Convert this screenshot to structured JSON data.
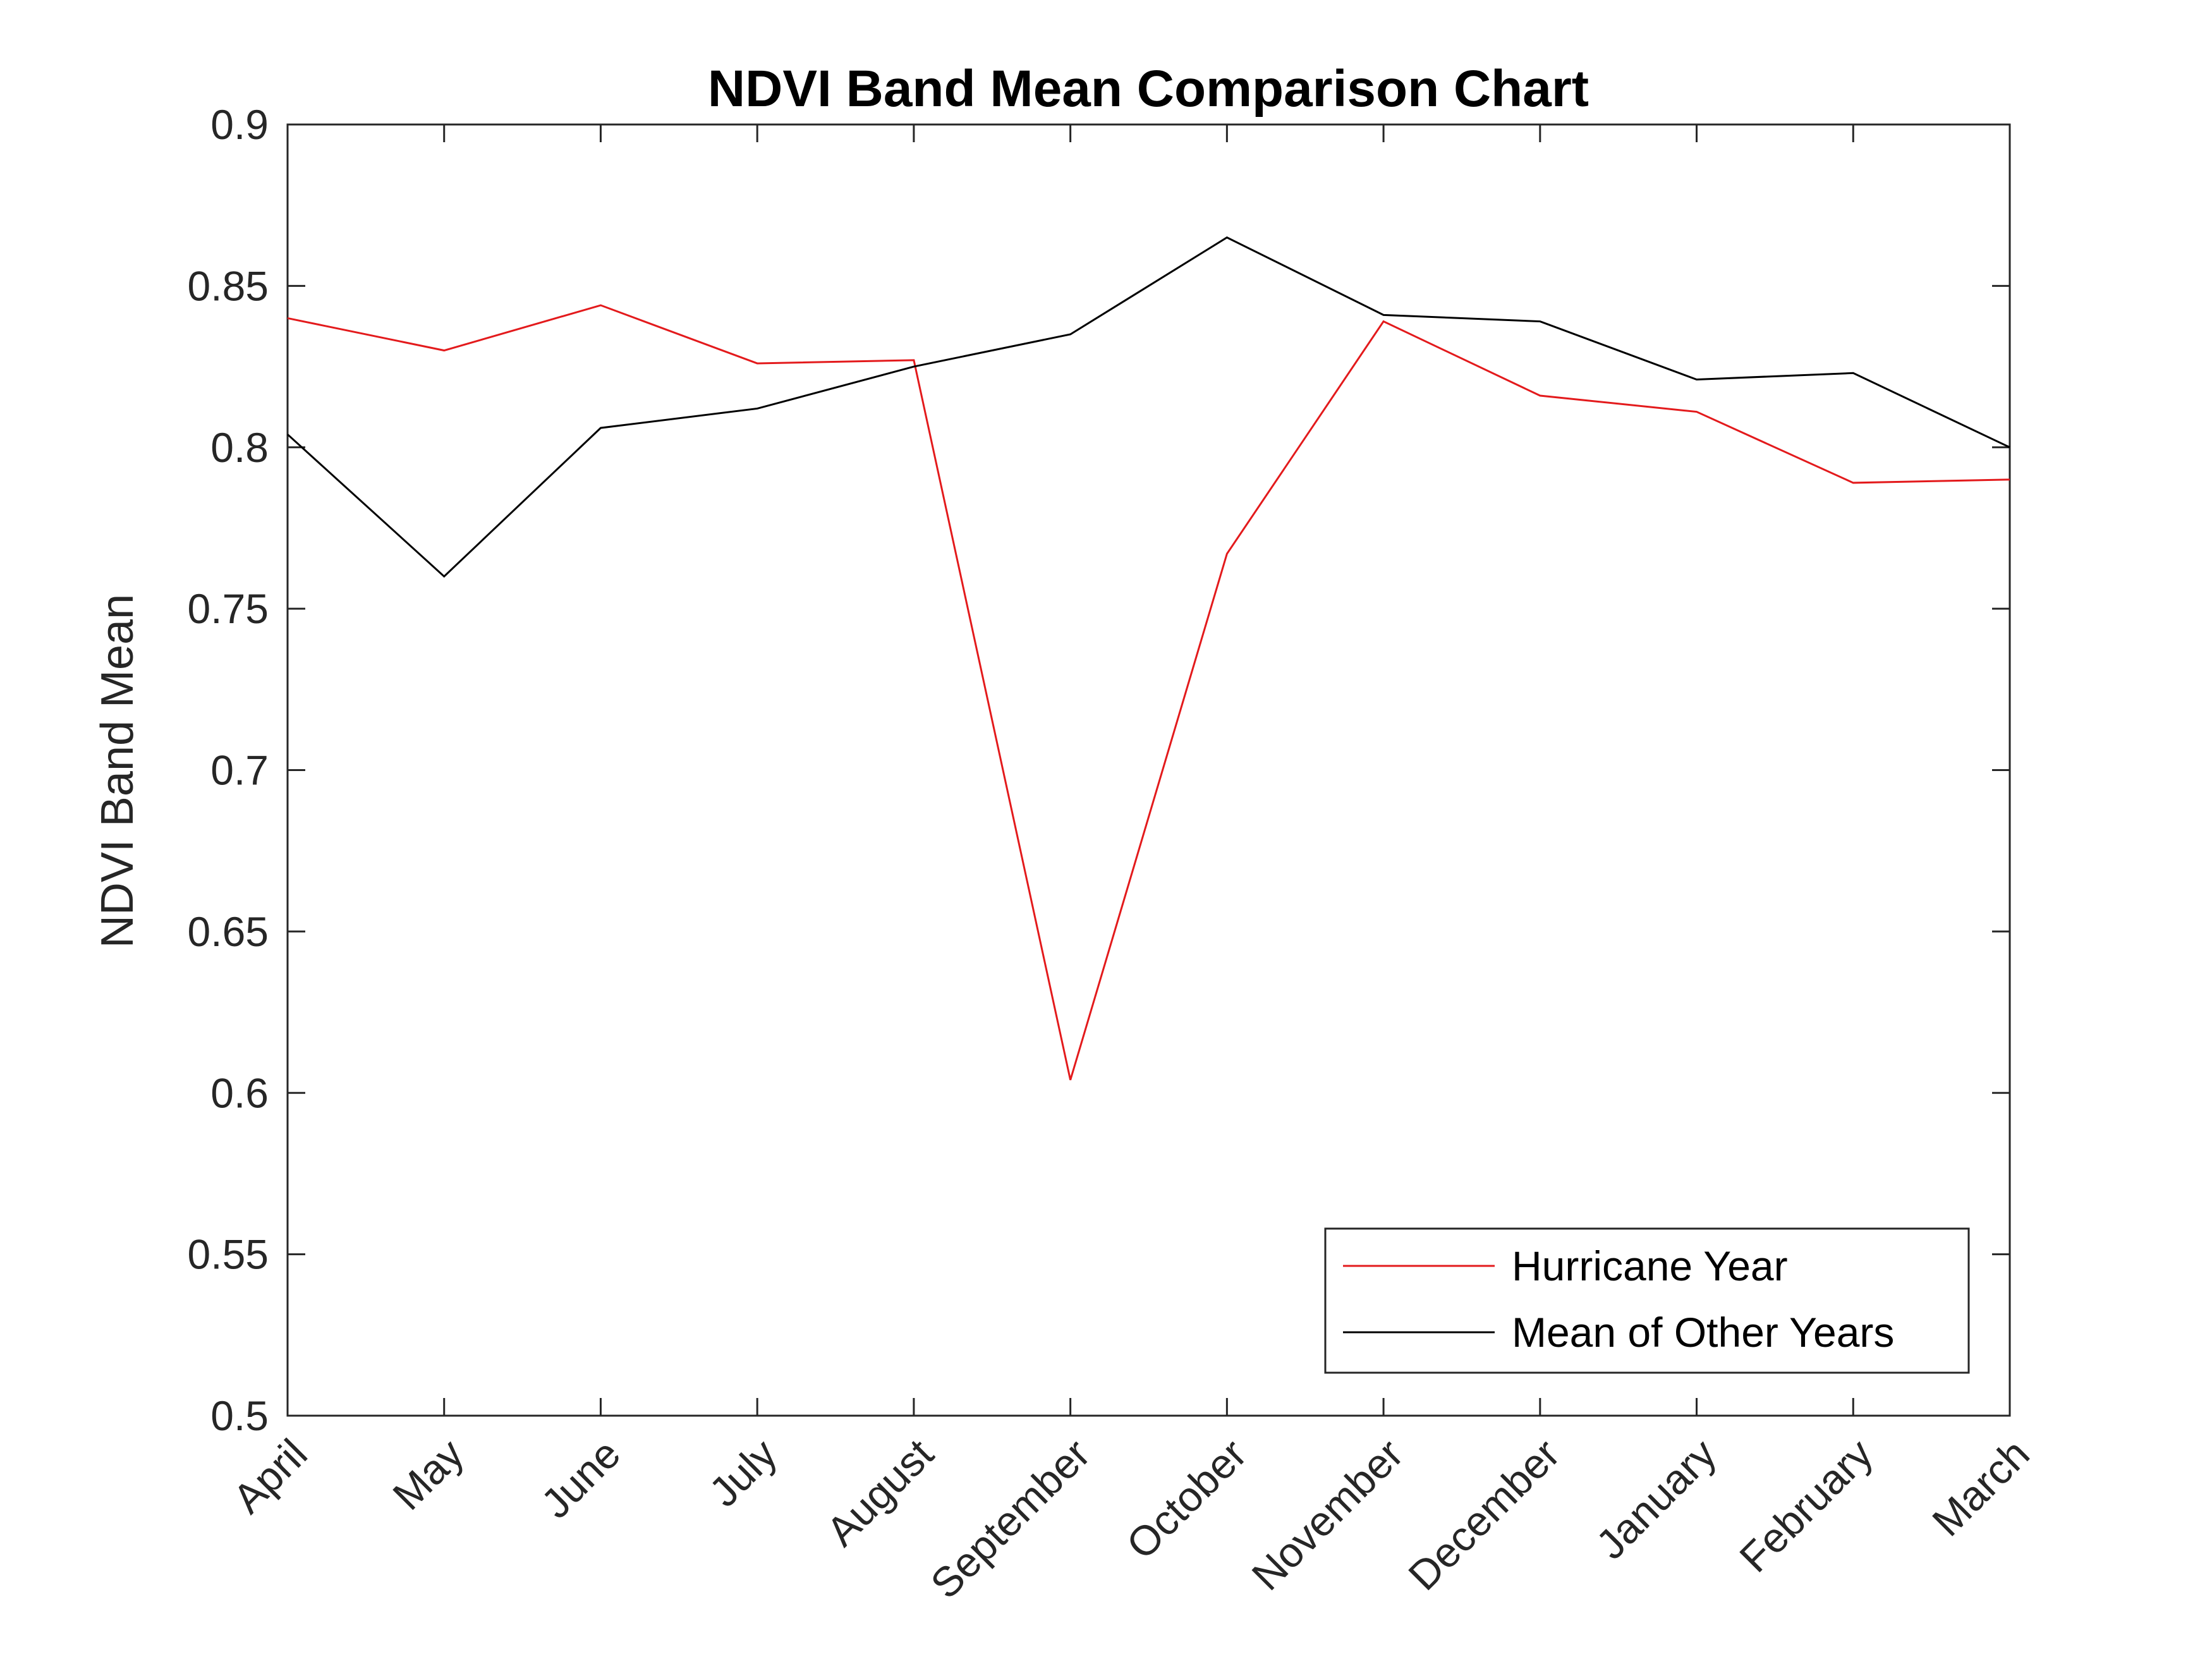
{
  "chart_data": {
    "type": "line",
    "title": "NDVI Band Mean Comparison Chart",
    "xlabel": "",
    "ylabel": "NDVI Band Mean",
    "categories": [
      "April",
      "May",
      "June",
      "July",
      "August",
      "September",
      "October",
      "November",
      "December",
      "January",
      "February",
      "March"
    ],
    "ylim": [
      0.5,
      0.9
    ],
    "yticks": [
      "0.5",
      "0.55",
      "0.6",
      "0.65",
      "0.7",
      "0.75",
      "0.8",
      "0.85",
      "0.9"
    ],
    "grid": false,
    "legend_position": "bottom-right",
    "series": [
      {
        "name": "Hurricane Year",
        "color": "#e31a1c",
        "values": [
          0.84,
          0.83,
          0.844,
          0.826,
          0.827,
          0.604,
          0.767,
          0.839,
          0.816,
          0.811,
          0.789,
          0.79
        ]
      },
      {
        "name": "Mean of Other Years",
        "color": "#000000",
        "values": [
          0.804,
          0.76,
          0.806,
          0.812,
          0.825,
          0.835,
          0.865,
          0.841,
          0.839,
          0.821,
          0.823,
          0.8
        ]
      }
    ]
  }
}
